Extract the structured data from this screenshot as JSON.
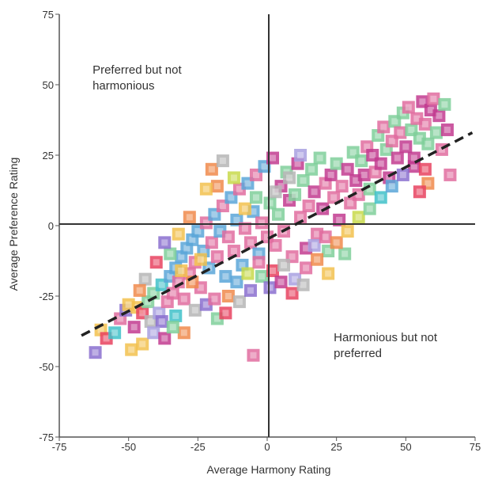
{
  "chart_data": {
    "type": "scatter",
    "xlabel": "Average Harmony Rating",
    "ylabel": "Average Preference Rating",
    "xlim": [
      -75,
      75
    ],
    "ylim": [
      -75,
      75
    ],
    "x_ticks": [
      -75,
      -50,
      -25,
      0,
      25,
      50,
      75
    ],
    "y_ticks": [
      75,
      50,
      25,
      0,
      -25,
      -50,
      -75
    ],
    "annotations": [
      {
        "lines": [
          "Preferred but not",
          "harmonious"
        ],
        "x": -63,
        "y": 54
      },
      {
        "lines": [
          "Harmonious but not",
          "preferred"
        ],
        "x": 24,
        "y": -41
      }
    ],
    "trendline": {
      "style": "dashed",
      "color": "#222222",
      "points": [
        [
          -67,
          -39
        ],
        [
          74,
          33
        ]
      ]
    },
    "palette": [
      "#e8425f",
      "#c23b8f",
      "#8a6fcf",
      "#5aa6d8",
      "#3fc1c9",
      "#7fcf9a",
      "#c8d94a",
      "#f2c14e",
      "#f08a4b",
      "#e06c9f",
      "#a8a0e0",
      "#b5b5b5"
    ],
    "points": [
      [
        -62,
        -45
      ],
      [
        -60,
        -37
      ],
      [
        -58,
        -40
      ],
      [
        -55,
        -38
      ],
      [
        -53,
        -33
      ],
      [
        -51,
        -30
      ],
      [
        -49,
        -44
      ],
      [
        -48,
        -36
      ],
      [
        -47,
        -29
      ],
      [
        -45,
        -31
      ],
      [
        -43,
        -27
      ],
      [
        -42,
        -34
      ],
      [
        -41,
        -24
      ],
      [
        -39,
        -31
      ],
      [
        -38,
        -21
      ],
      [
        -36,
        -27
      ],
      [
        -35,
        -18
      ],
      [
        -34,
        -24
      ],
      [
        -33,
        -15
      ],
      [
        -32,
        -20
      ],
      [
        -31,
        -11
      ],
      [
        -30,
        -26
      ],
      [
        -29,
        -8
      ],
      [
        -28,
        -17
      ],
      [
        -27,
        -5
      ],
      [
        -26,
        -13
      ],
      [
        -25,
        -2
      ],
      [
        -24,
        -22
      ],
      [
        -23,
        -9
      ],
      [
        -22,
        1
      ],
      [
        -21,
        -15
      ],
      [
        -20,
        -6
      ],
      [
        -19,
        4
      ],
      [
        -18,
        -11
      ],
      [
        -17,
        -2
      ],
      [
        -16,
        7
      ],
      [
        -15,
        -18
      ],
      [
        -14,
        -4
      ],
      [
        -13,
        10
      ],
      [
        -12,
        -9
      ],
      [
        -11,
        2
      ],
      [
        -10,
        13
      ],
      [
        -9,
        -14
      ],
      [
        -8,
        -1
      ],
      [
        -7,
        15
      ],
      [
        -6,
        -6
      ],
      [
        -5,
        5
      ],
      [
        -4,
        18
      ],
      [
        -3,
        -10
      ],
      [
        -2,
        1
      ],
      [
        -1,
        21
      ],
      [
        0,
        -4
      ],
      [
        1,
        8
      ],
      [
        2,
        24
      ],
      [
        3,
        -7
      ],
      [
        4,
        4
      ],
      [
        5,
        14
      ],
      [
        6,
        -2
      ],
      [
        7,
        19
      ],
      [
        8,
        9
      ],
      [
        9,
        -11
      ],
      [
        10,
        11
      ],
      [
        11,
        22
      ],
      [
        12,
        3
      ],
      [
        13,
        16
      ],
      [
        14,
        -8
      ],
      [
        15,
        7
      ],
      [
        16,
        20
      ],
      [
        17,
        12
      ],
      [
        18,
        -3
      ],
      [
        19,
        24
      ],
      [
        20,
        6
      ],
      [
        21,
        15
      ],
      [
        22,
        -9
      ],
      [
        23,
        18
      ],
      [
        24,
        10
      ],
      [
        25,
        22
      ],
      [
        26,
        2
      ],
      [
        27,
        14
      ],
      [
        28,
        -10
      ],
      [
        29,
        20
      ],
      [
        30,
        8
      ],
      [
        31,
        26
      ],
      [
        32,
        16
      ],
      [
        33,
        11
      ],
      [
        34,
        23
      ],
      [
        35,
        18
      ],
      [
        36,
        28
      ],
      [
        37,
        13
      ],
      [
        38,
        25
      ],
      [
        39,
        19
      ],
      [
        40,
        32
      ],
      [
        41,
        22
      ],
      [
        42,
        35
      ],
      [
        43,
        27
      ],
      [
        44,
        17
      ],
      [
        45,
        30
      ],
      [
        46,
        37
      ],
      [
        47,
        24
      ],
      [
        48,
        33
      ],
      [
        49,
        40
      ],
      [
        50,
        28
      ],
      [
        51,
        42
      ],
      [
        52,
        34
      ],
      [
        53,
        21
      ],
      [
        54,
        38
      ],
      [
        55,
        31
      ],
      [
        56,
        44
      ],
      [
        57,
        36
      ],
      [
        58,
        29
      ],
      [
        59,
        41
      ],
      [
        60,
        45
      ],
      [
        61,
        33
      ],
      [
        62,
        39
      ],
      [
        63,
        27
      ],
      [
        64,
        43
      ],
      [
        65,
        34
      ],
      [
        66,
        18
      ],
      [
        58,
        15
      ],
      [
        55,
        12
      ],
      [
        -20,
        20
      ],
      [
        -16,
        23
      ],
      [
        -18,
        14
      ],
      [
        -22,
        13
      ],
      [
        -28,
        3
      ],
      [
        -32,
        -3
      ],
      [
        -35,
        -10
      ],
      [
        -37,
        -6
      ],
      [
        -40,
        -13
      ],
      [
        -44,
        -19
      ],
      [
        -46,
        -23
      ],
      [
        -50,
        -28
      ],
      [
        -38,
        -34
      ],
      [
        -33,
        -32
      ],
      [
        -30,
        -38
      ],
      [
        -26,
        -30
      ],
      [
        -22,
        -28
      ],
      [
        -18,
        -33
      ],
      [
        -14,
        -25
      ],
      [
        -10,
        -27
      ],
      [
        -6,
        -23
      ],
      [
        -2,
        -18
      ],
      [
        2,
        -16
      ],
      [
        6,
        -14
      ],
      [
        10,
        -19
      ],
      [
        14,
        -15
      ],
      [
        18,
        -12
      ],
      [
        22,
        -17
      ],
      [
        -5,
        -46
      ],
      [
        -8,
        6
      ],
      [
        -12,
        17
      ],
      [
        -4,
        10
      ],
      [
        3,
        12
      ],
      [
        8,
        17
      ],
      [
        12,
        25
      ],
      [
        -27,
        -20
      ],
      [
        -31,
        -16
      ],
      [
        -24,
        -12
      ],
      [
        -19,
        -26
      ],
      [
        -15,
        -31
      ],
      [
        -11,
        -20
      ],
      [
        -7,
        -17
      ],
      [
        -3,
        -13
      ],
      [
        1,
        -22
      ],
      [
        5,
        -20
      ],
      [
        9,
        -24
      ],
      [
        13,
        -21
      ],
      [
        17,
        -7
      ],
      [
        21,
        -4
      ],
      [
        25,
        -6
      ],
      [
        29,
        -2
      ],
      [
        33,
        3
      ],
      [
        37,
        6
      ],
      [
        41,
        10
      ],
      [
        45,
        14
      ],
      [
        49,
        18
      ],
      [
        53,
        24
      ],
      [
        57,
        20
      ],
      [
        -45,
        -42
      ],
      [
        -41,
        -38
      ],
      [
        -37,
        -40
      ],
      [
        -34,
        -36
      ]
    ]
  }
}
